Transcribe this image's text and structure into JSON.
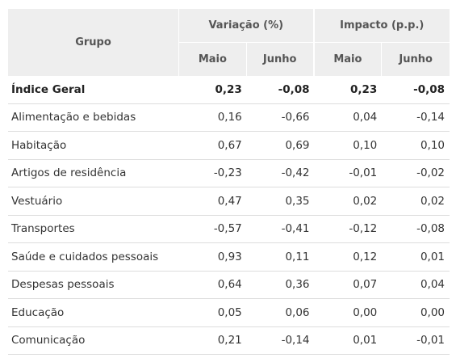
{
  "table": {
    "header": {
      "grupo": "Grupo",
      "variacao": "Variação (%)",
      "impacto": "Impacto (p.p.)",
      "maio": "Maio",
      "junho": "Junho"
    },
    "rows": [
      {
        "grupo": "Índice Geral",
        "var_maio": "0,23",
        "var_junho": "-0,08",
        "imp_maio": "0,23",
        "imp_junho": "-0,08"
      },
      {
        "grupo": "Alimentação e bebidas",
        "var_maio": "0,16",
        "var_junho": "-0,66",
        "imp_maio": "0,04",
        "imp_junho": "-0,14"
      },
      {
        "grupo": "Habitação",
        "var_maio": "0,67",
        "var_junho": "0,69",
        "imp_maio": "0,10",
        "imp_junho": "0,10"
      },
      {
        "grupo": "Artigos de residência",
        "var_maio": "-0,23",
        "var_junho": "-0,42",
        "imp_maio": "-0,01",
        "imp_junho": "-0,02"
      },
      {
        "grupo": "Vestuário",
        "var_maio": "0,47",
        "var_junho": "0,35",
        "imp_maio": "0,02",
        "imp_junho": "0,02"
      },
      {
        "grupo": "Transportes",
        "var_maio": "-0,57",
        "var_junho": "-0,41",
        "imp_maio": "-0,12",
        "imp_junho": "-0,08"
      },
      {
        "grupo": "Saúde e cuidados pessoais",
        "var_maio": "0,93",
        "var_junho": "0,11",
        "imp_maio": "0,12",
        "imp_junho": "0,01"
      },
      {
        "grupo": "Despesas pessoais",
        "var_maio": "0,64",
        "var_junho": "0,36",
        "imp_maio": "0,07",
        "imp_junho": "0,04"
      },
      {
        "grupo": "Educação",
        "var_maio": "0,05",
        "var_junho": "0,06",
        "imp_maio": "0,00",
        "imp_junho": "0,00"
      },
      {
        "grupo": "Comunicação",
        "var_maio": "0,21",
        "var_junho": "-0,14",
        "imp_maio": "0,01",
        "imp_junho": "-0,01"
      }
    ]
  }
}
